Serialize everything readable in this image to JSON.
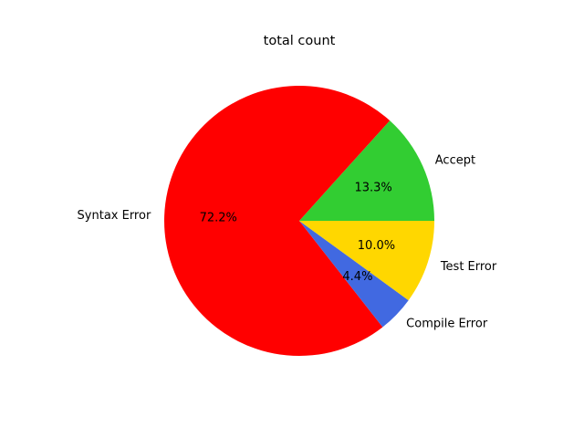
{
  "chart_data": {
    "type": "pie",
    "title": "total count",
    "start_angle_deg": 0,
    "direction": "counterclockwise",
    "legend": "none",
    "slices": [
      {
        "label": "Accept",
        "percent_label": "13.3%",
        "value": 13.3,
        "color": "#32cd32"
      },
      {
        "label": "Syntax Error",
        "percent_label": "72.2%",
        "value": 72.2,
        "color": "#ff0000"
      },
      {
        "label": "Compile Error",
        "percent_label": "4.4%",
        "value": 4.4,
        "color": "#4169e1"
      },
      {
        "label": "Test Error",
        "percent_label": "10.0%",
        "value": 10.0,
        "color": "#ffd700"
      }
    ]
  }
}
